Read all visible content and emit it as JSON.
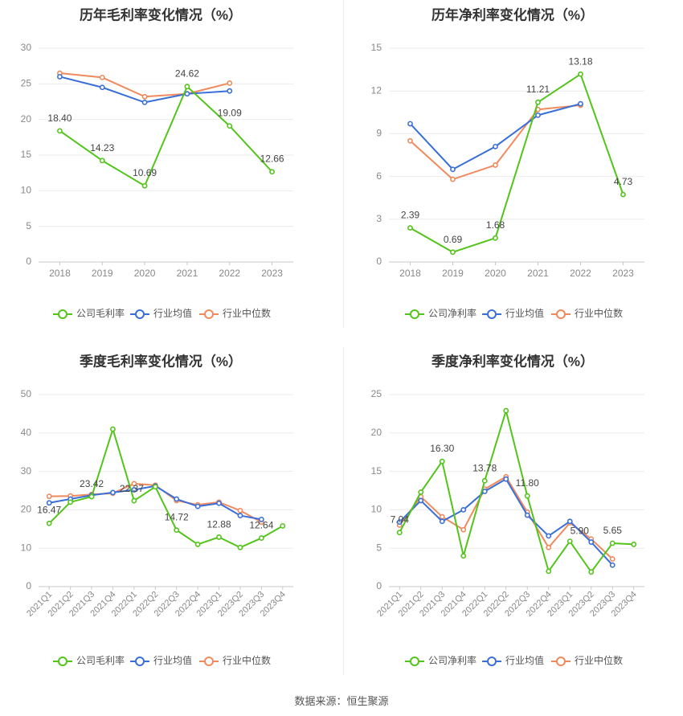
{
  "legend_labels": {
    "industry_avg": "行业均值",
    "industry_median": "行业中位数"
  },
  "colors": {
    "company": "#52c41a",
    "industry_avg": "#3a6fd8",
    "industry_median": "#f08a5d"
  },
  "source": "数据来源：恒生聚源",
  "chart_data": [
    {
      "type": "line",
      "title": "历年毛利率变化情况（%）",
      "categories": [
        "2018",
        "2019",
        "2020",
        "2021",
        "2022",
        "2023"
      ],
      "ylim": [
        0,
        30
      ],
      "yticks": [
        0,
        5,
        10,
        15,
        20,
        25,
        30
      ],
      "grid": true,
      "legend_position": "bottom",
      "series": [
        {
          "name": "公司毛利率",
          "key": "company",
          "values": [
            18.4,
            14.23,
            10.69,
            24.62,
            19.09,
            12.66
          ]
        },
        {
          "name": "行业均值",
          "key": "industry_avg",
          "values": [
            26.0,
            24.5,
            22.4,
            23.6,
            24.0,
            null
          ]
        },
        {
          "name": "行业中位数",
          "key": "industry_median",
          "values": [
            26.5,
            25.9,
            23.2,
            23.6,
            25.1,
            null
          ]
        }
      ],
      "data_labels": [
        {
          "i": 0,
          "text": "18.40"
        },
        {
          "i": 1,
          "text": "14.23"
        },
        {
          "i": 2,
          "text": "10.69"
        },
        {
          "i": 3,
          "text": "24.62"
        },
        {
          "i": 4,
          "text": "19.09"
        },
        {
          "i": 5,
          "text": "12.66"
        }
      ]
    },
    {
      "type": "line",
      "title": "历年净利率变化情况（%）",
      "categories": [
        "2018",
        "2019",
        "2020",
        "2021",
        "2022",
        "2023"
      ],
      "ylim": [
        0,
        15
      ],
      "yticks": [
        0,
        3,
        6,
        9,
        12,
        15
      ],
      "grid": true,
      "legend_position": "bottom",
      "series": [
        {
          "name": "公司净利率",
          "key": "company",
          "values": [
            2.39,
            0.69,
            1.68,
            11.21,
            13.18,
            4.73
          ]
        },
        {
          "name": "行业均值",
          "key": "industry_avg",
          "values": [
            9.7,
            6.5,
            8.1,
            10.3,
            11.1,
            null
          ]
        },
        {
          "name": "行业中位数",
          "key": "industry_median",
          "values": [
            8.5,
            5.8,
            6.8,
            10.7,
            11.0,
            null
          ]
        }
      ],
      "data_labels": [
        {
          "i": 0,
          "text": "2.39"
        },
        {
          "i": 1,
          "text": "0.69"
        },
        {
          "i": 2,
          "text": "1.68"
        },
        {
          "i": 3,
          "text": "11.21"
        },
        {
          "i": 4,
          "text": "13.18"
        },
        {
          "i": 5,
          "text": "4.73"
        }
      ]
    },
    {
      "type": "line",
      "title": "季度毛利率变化情况（%）",
      "categories": [
        "2021Q1",
        "2021Q2",
        "2021Q3",
        "2021Q4",
        "2022Q1",
        "2022Q2",
        "2022Q3",
        "2022Q4",
        "2023Q1",
        "2023Q2",
        "2023Q3",
        "2023Q4"
      ],
      "ylim": [
        0,
        50
      ],
      "yticks": [
        0,
        10,
        20,
        30,
        40,
        50
      ],
      "grid": true,
      "legend_position": "bottom",
      "series": [
        {
          "name": "公司毛利率",
          "key": "company",
          "values": [
            16.47,
            22.0,
            23.42,
            41.0,
            22.37,
            26.0,
            14.72,
            11.0,
            12.88,
            10.2,
            12.64,
            15.8
          ]
        },
        {
          "name": "行业均值",
          "key": "industry_avg",
          "values": [
            21.8,
            22.8,
            23.8,
            24.5,
            25.2,
            26.2,
            22.8,
            20.9,
            21.7,
            18.5,
            17.5,
            null
          ]
        },
        {
          "name": "行业中位数",
          "key": "industry_median",
          "values": [
            23.5,
            23.6,
            24.0,
            24.3,
            26.8,
            26.4,
            22.4,
            21.3,
            22.0,
            19.8,
            16.8,
            null
          ]
        }
      ],
      "data_labels": [
        {
          "i": 0,
          "text": "16.47"
        },
        {
          "i": 2,
          "text": "23.42"
        },
        {
          "i": 4,
          "text": "22.37"
        },
        {
          "i": 6,
          "text": "14.72"
        },
        {
          "i": 8,
          "text": "12.88"
        },
        {
          "i": 10,
          "text": "12.64"
        }
      ]
    },
    {
      "type": "line",
      "title": "季度净利率变化情况（%）",
      "categories": [
        "2021Q1",
        "2021Q2",
        "2021Q3",
        "2021Q4",
        "2022Q1",
        "2022Q2",
        "2022Q3",
        "2022Q4",
        "2023Q1",
        "2023Q2",
        "2023Q3",
        "2023Q4"
      ],
      "ylim": [
        0,
        25
      ],
      "yticks": [
        0,
        5,
        10,
        15,
        20,
        25
      ],
      "grid": true,
      "legend_position": "bottom",
      "series": [
        {
          "name": "公司净利率",
          "key": "company",
          "values": [
            7.04,
            12.3,
            16.3,
            4.0,
            13.78,
            22.9,
            11.8,
            2.0,
            5.9,
            1.9,
            5.65,
            5.5
          ]
        },
        {
          "name": "行业均值",
          "key": "industry_avg",
          "values": [
            8.4,
            11.2,
            8.5,
            10.0,
            12.4,
            14.0,
            9.3,
            6.6,
            8.5,
            5.8,
            2.8,
            null
          ]
        },
        {
          "name": "行业中位数",
          "key": "industry_median",
          "values": [
            8.0,
            11.7,
            9.1,
            7.4,
            12.7,
            14.3,
            9.7,
            5.1,
            8.3,
            6.2,
            3.6,
            null
          ]
        }
      ],
      "data_labels": [
        {
          "i": 0,
          "text": "7.04"
        },
        {
          "i": 2,
          "text": "16.30"
        },
        {
          "i": 4,
          "text": "13.78"
        },
        {
          "i": 6,
          "text": "11.80"
        },
        {
          "i": 8,
          "text": "5.90"
        },
        {
          "i": 10,
          "text": "5.65"
        }
      ]
    }
  ]
}
